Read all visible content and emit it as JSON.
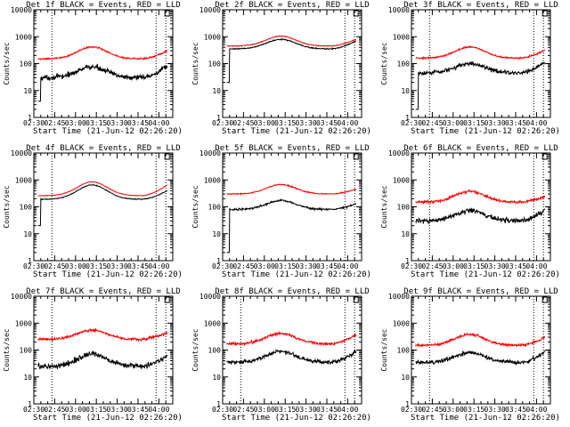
{
  "figure": {
    "start_time_label": "Start Time (21-Jun-12 02:26:20)",
    "ylabel": "Counts/sec"
  },
  "colors": {
    "events": "#000000",
    "lld": "#ff0000",
    "axes": "#000000"
  },
  "chart_data": [
    {
      "type": "line",
      "title": "Det 1f BLACK = Events, RED = LLD",
      "xlabel": "Start Time (21-Jun-12 02:26:20)",
      "ylabel": "Counts/sec",
      "x_ticks": [
        "02:30",
        "02:45",
        "03:00",
        "03:15",
        "03:30",
        "03:45",
        "04:00"
      ],
      "y_scale": "log",
      "ylim": [
        1,
        10000
      ],
      "x_range_minutes": [
        0,
        100
      ],
      "data_range_minutes": [
        3,
        96
      ],
      "dotted_x_minutes": [
        13,
        88,
        95
      ],
      "series": [
        {
          "name": "Events",
          "color": "#000000",
          "shape": "hump",
          "base": 30,
          "peak": 75,
          "end": 80,
          "noise": 0.2,
          "startup": 4
        },
        {
          "name": "LLD",
          "color": "#ff0000",
          "shape": "hump",
          "base": 150,
          "peak": 420,
          "end": 300,
          "noise": 0.06
        }
      ]
    },
    {
      "type": "line",
      "title": "Det 2f BLACK = Events, RED = LLD",
      "xlabel": "Start Time (21-Jun-12 02:26:20)",
      "ylabel": "Counts/sec",
      "x_ticks": [
        "02:30",
        "02:45",
        "03:00",
        "03:15",
        "03:30",
        "03:45",
        "04:00"
      ],
      "y_scale": "log",
      "ylim": [
        1,
        10000
      ],
      "x_range_minutes": [
        0,
        100
      ],
      "data_range_minutes": [
        3,
        96
      ],
      "dotted_x_minutes": [
        88,
        95
      ],
      "series": [
        {
          "name": "Events",
          "color": "#000000",
          "shape": "hump",
          "base": 350,
          "peak": 800,
          "end": 700,
          "noise": 0.04,
          "startup": 20
        },
        {
          "name": "LLD",
          "color": "#ff0000",
          "shape": "hump",
          "base": 450,
          "peak": 1050,
          "end": 800,
          "noise": 0.03
        }
      ]
    },
    {
      "type": "line",
      "title": "Det 3f BLACK = Events, RED = LLD",
      "xlabel": "Start Time (21-Jun-12 02:26:20)",
      "ylabel": "Counts/sec",
      "x_ticks": [
        "02:30",
        "02:45",
        "03:00",
        "03:15",
        "03:30",
        "03:45",
        "04:00"
      ],
      "y_scale": "log",
      "ylim": [
        1,
        10000
      ],
      "x_range_minutes": [
        0,
        100
      ],
      "data_range_minutes": [
        3,
        96
      ],
      "dotted_x_minutes": [
        13,
        88,
        95
      ],
      "series": [
        {
          "name": "Events",
          "color": "#000000",
          "shape": "hump",
          "base": 45,
          "peak": 100,
          "end": 110,
          "noise": 0.15,
          "startup": 2
        },
        {
          "name": "LLD",
          "color": "#ff0000",
          "shape": "hump",
          "base": 160,
          "peak": 420,
          "end": 320,
          "noise": 0.06
        }
      ]
    },
    {
      "type": "line",
      "title": "Det 4f BLACK = Events, RED = LLD",
      "xlabel": "Start Time (21-Jun-12 02:26:20)",
      "ylabel": "Counts/sec",
      "x_ticks": [
        "02:30",
        "02:45",
        "03:00",
        "03:15",
        "03:30",
        "03:45",
        "04:00"
      ],
      "y_scale": "log",
      "ylim": [
        1,
        10000
      ],
      "x_range_minutes": [
        0,
        100
      ],
      "data_range_minutes": [
        3,
        96
      ],
      "dotted_x_minutes": [
        13,
        88,
        95
      ],
      "series": [
        {
          "name": "Events",
          "color": "#000000",
          "shape": "hump",
          "base": 190,
          "peak": 650,
          "end": 400,
          "noise": 0.03,
          "startup": 20
        },
        {
          "name": "LLD",
          "color": "#ff0000",
          "shape": "hump",
          "base": 260,
          "peak": 850,
          "end": 650,
          "noise": 0.02
        }
      ]
    },
    {
      "type": "line",
      "title": "Det 5f BLACK = Events, RED = LLD",
      "xlabel": "Start Time (21-Jun-12 02:26:20)",
      "ylabel": "Counts/sec",
      "x_ticks": [
        "02:30",
        "02:45",
        "03:00",
        "03:15",
        "03:30",
        "03:45",
        "04:00"
      ],
      "y_scale": "log",
      "ylim": [
        1,
        10000
      ],
      "x_range_minutes": [
        0,
        100
      ],
      "data_range_minutes": [
        3,
        96
      ],
      "dotted_x_minutes": [
        88,
        95
      ],
      "series": [
        {
          "name": "Events",
          "color": "#000000",
          "shape": "hump",
          "base": 80,
          "peak": 170,
          "end": 130,
          "noise": 0.07,
          "startup": 2
        },
        {
          "name": "LLD",
          "color": "#ff0000",
          "shape": "hump",
          "base": 300,
          "peak": 680,
          "end": 450,
          "noise": 0.04
        }
      ]
    },
    {
      "type": "line",
      "title": "Det 6f BLACK = Events, RED = LLD",
      "xlabel": "Start Time (21-Jun-12 02:26:20)",
      "ylabel": "Counts/sec",
      "x_ticks": [
        "02:30",
        "02:45",
        "03:00",
        "03:15",
        "03:30",
        "03:45",
        "04:00"
      ],
      "y_scale": "log",
      "ylim": [
        1,
        10000
      ],
      "x_range_minutes": [
        0,
        100
      ],
      "data_range_minutes": [
        3,
        96
      ],
      "dotted_x_minutes": [
        13,
        88,
        95
      ],
      "series": [
        {
          "name": "Events",
          "color": "#000000",
          "shape": "hump",
          "base": 30,
          "peak": 70,
          "end": 75,
          "noise": 0.2
        },
        {
          "name": "LLD",
          "color": "#ff0000",
          "shape": "hump",
          "base": 150,
          "peak": 380,
          "end": 240,
          "noise": 0.1
        }
      ]
    },
    {
      "type": "line",
      "title": "Det 7f BLACK = Events, RED = LLD",
      "xlabel": "Start Time (21-Jun-12 02:26:20)",
      "ylabel": "Counts/sec",
      "x_ticks": [
        "02:30",
        "02:45",
        "03:00",
        "03:15",
        "03:30",
        "03:45",
        "04:00"
      ],
      "y_scale": "log",
      "ylim": [
        1,
        10000
      ],
      "x_range_minutes": [
        0,
        100
      ],
      "data_range_minutes": [
        3,
        96
      ],
      "dotted_x_minutes": [
        13,
        88,
        95
      ],
      "series": [
        {
          "name": "Events",
          "color": "#000000",
          "shape": "hump",
          "base": 25,
          "peak": 70,
          "end": 65,
          "noise": 0.22
        },
        {
          "name": "LLD",
          "color": "#ff0000",
          "shape": "hump",
          "base": 250,
          "peak": 550,
          "end": 450,
          "noise": 0.1
        }
      ]
    },
    {
      "type": "line",
      "title": "Det 8f BLACK = Events, RED = LLD",
      "xlabel": "Start Time (21-Jun-12 02:26:20)",
      "ylabel": "Counts/sec",
      "x_ticks": [
        "02:30",
        "02:45",
        "03:00",
        "03:15",
        "03:30",
        "03:45",
        "04:00"
      ],
      "y_scale": "log",
      "ylim": [
        1,
        10000
      ],
      "x_range_minutes": [
        0,
        100
      ],
      "data_range_minutes": [
        3,
        96
      ],
      "dotted_x_minutes": [
        13,
        88,
        95
      ],
      "series": [
        {
          "name": "Events",
          "color": "#000000",
          "shape": "hump",
          "base": 35,
          "peak": 90,
          "end": 90,
          "noise": 0.15
        },
        {
          "name": "LLD",
          "color": "#ff0000",
          "shape": "hump",
          "base": 170,
          "peak": 420,
          "end": 380,
          "noise": 0.1
        }
      ]
    },
    {
      "type": "line",
      "title": "Det 9f BLACK = Events, RED = LLD",
      "xlabel": "Start Time (21-Jun-12 02:26:20)",
      "ylabel": "Counts/sec",
      "x_ticks": [
        "02:30",
        "02:45",
        "03:00",
        "03:15",
        "03:30",
        "03:45",
        "04:00"
      ],
      "y_scale": "log",
      "ylim": [
        1,
        10000
      ],
      "x_range_minutes": [
        0,
        100
      ],
      "data_range_minutes": [
        3,
        96
      ],
      "dotted_x_minutes": [
        13,
        88,
        95
      ],
      "series": [
        {
          "name": "Events",
          "color": "#000000",
          "shape": "hump",
          "base": 35,
          "peak": 80,
          "end": 80,
          "noise": 0.15
        },
        {
          "name": "LLD",
          "color": "#ff0000",
          "shape": "hump",
          "base": 150,
          "peak": 380,
          "end": 300,
          "noise": 0.1
        }
      ]
    }
  ]
}
